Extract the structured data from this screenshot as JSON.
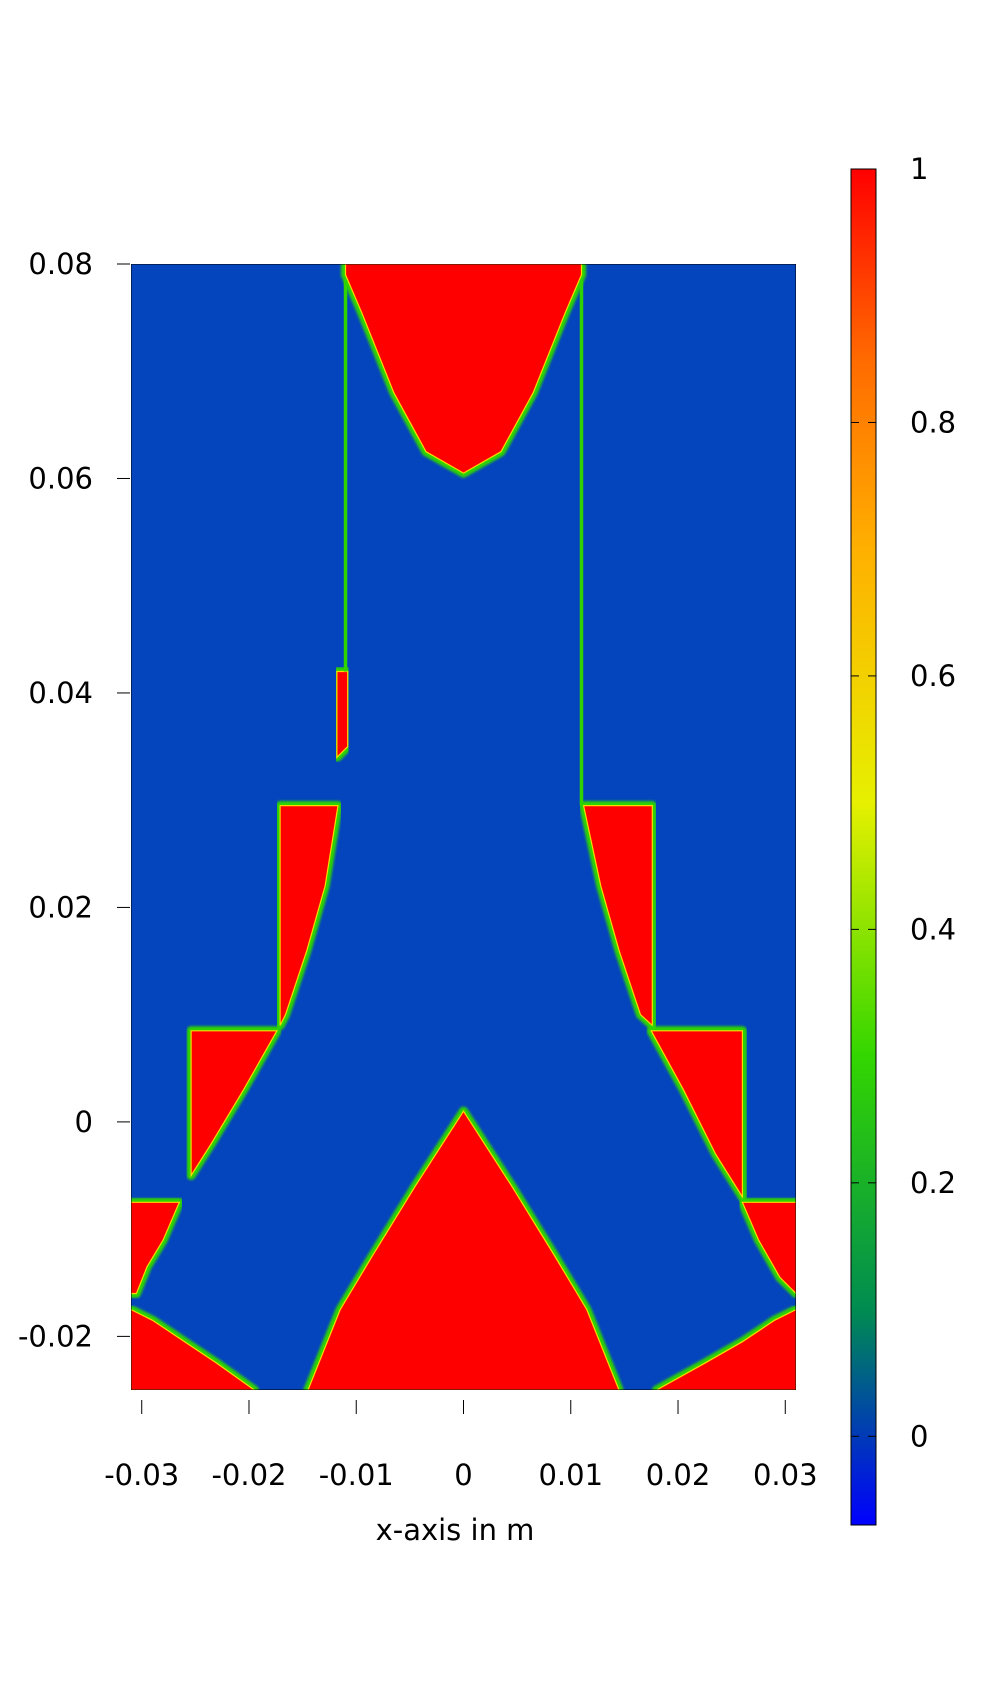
{
  "chart_data": {
    "type": "heatmap",
    "title": "",
    "xlabel": "x-axis in m",
    "ylabel": "",
    "xlim": [
      -0.031,
      0.031
    ],
    "ylim": [
      -0.025,
      0.08
    ],
    "x_ticks": [
      {
        "value": -0.03,
        "label": "-0.03"
      },
      {
        "value": -0.02,
        "label": "-0.02"
      },
      {
        "value": -0.01,
        "label": "-0.01"
      },
      {
        "value": 0,
        "label": "0"
      },
      {
        "value": 0.01,
        "label": "0.01"
      },
      {
        "value": 0.02,
        "label": "0.02"
      },
      {
        "value": 0.03,
        "label": "0.03"
      }
    ],
    "y_ticks": [
      {
        "value": -0.02,
        "label": "-0.02"
      },
      {
        "value": 0,
        "label": "0"
      },
      {
        "value": 0.02,
        "label": "0.02"
      },
      {
        "value": 0.04,
        "label": "0.04"
      },
      {
        "value": 0.06,
        "label": "0.06"
      },
      {
        "value": 0.08,
        "label": "0.08"
      }
    ],
    "colorbar": {
      "range": [
        -0.07,
        1.0
      ],
      "ticks": [
        {
          "value": 0,
          "label": "0"
        },
        {
          "value": 0.2,
          "label": "0.2"
        },
        {
          "value": 0.4,
          "label": "0.4"
        },
        {
          "value": 0.6,
          "label": "0.6"
        },
        {
          "value": 0.8,
          "label": "0.8"
        },
        {
          "value": 1,
          "label": "1"
        }
      ],
      "colors": [
        {
          "value": -0.07,
          "color": "#0000ff"
        },
        {
          "value": 0.1,
          "color": "#008c50"
        },
        {
          "value": 0.3,
          "color": "#33d600"
        },
        {
          "value": 0.5,
          "color": "#e6f000"
        },
        {
          "value": 0.7,
          "color": "#ffb000"
        },
        {
          "value": 0.85,
          "color": "#ff6a00"
        },
        {
          "value": 1.0,
          "color": "#ff0000"
        }
      ]
    },
    "field": {
      "background_value": 0,
      "background_color": "#0444bd",
      "filled_value": 1,
      "filled_color": "#ff0000",
      "interface_color": "#2fd400",
      "regions": [
        {
          "name": "top-inlet-cap",
          "points": [
            [
              -0.011,
              0.08
            ],
            [
              0.011,
              0.08
            ],
            [
              0.011,
              0.079
            ],
            [
              0.0095,
              0.0755
            ],
            [
              0.0065,
              0.068
            ],
            [
              0.0035,
              0.0625
            ],
            [
              0.0,
              0.0605
            ],
            [
              -0.0035,
              0.0625
            ],
            [
              -0.0065,
              0.068
            ],
            [
              -0.0095,
              0.0755
            ],
            [
              -0.011,
              0.079
            ]
          ]
        },
        {
          "name": "narrow-strip-left",
          "points": [
            [
              -0.0118,
              0.042
            ],
            [
              -0.0108,
              0.042
            ],
            [
              -0.0108,
              0.035
            ],
            [
              -0.0118,
              0.034
            ]
          ]
        },
        {
          "name": "step-left-upper",
          "points": [
            [
              -0.0171,
              0.0295
            ],
            [
              -0.0117,
              0.0295
            ],
            [
              -0.0129,
              0.022
            ],
            [
              -0.0146,
              0.016
            ],
            [
              -0.0166,
              0.01
            ],
            [
              -0.0171,
              0.009
            ]
          ]
        },
        {
          "name": "step-right-upper",
          "points": [
            [
              0.0112,
              0.0295
            ],
            [
              0.0176,
              0.0295
            ],
            [
              0.0176,
              0.009
            ],
            [
              0.0165,
              0.01
            ],
            [
              0.0145,
              0.016
            ],
            [
              0.0128,
              0.022
            ]
          ]
        },
        {
          "name": "step-left-middle",
          "points": [
            [
              -0.0254,
              0.0085
            ],
            [
              -0.0174,
              0.0085
            ],
            [
              -0.0205,
              0.003
            ],
            [
              -0.0235,
              -0.002
            ],
            [
              -0.0254,
              -0.005
            ]
          ]
        },
        {
          "name": "step-right-middle",
          "points": [
            [
              0.0175,
              0.0085
            ],
            [
              0.026,
              0.0085
            ],
            [
              0.026,
              -0.007
            ],
            [
              0.0235,
              -0.003
            ],
            [
              0.0205,
              0.003
            ]
          ]
        },
        {
          "name": "corner-left-lower",
          "points": [
            [
              -0.031,
              -0.0075
            ],
            [
              -0.0265,
              -0.0075
            ],
            [
              -0.028,
              -0.011
            ],
            [
              -0.0295,
              -0.0135
            ],
            [
              -0.0305,
              -0.016
            ],
            [
              -0.031,
              -0.016
            ]
          ]
        },
        {
          "name": "corner-right-lower",
          "points": [
            [
              0.026,
              -0.0075
            ],
            [
              0.031,
              -0.0075
            ],
            [
              0.031,
              -0.016
            ],
            [
              0.0295,
              -0.0145
            ],
            [
              0.0275,
              -0.011
            ]
          ]
        },
        {
          "name": "bottom-left-lobe",
          "points": [
            [
              -0.031,
              -0.0175
            ],
            [
              -0.029,
              -0.0185
            ],
            [
              -0.026,
              -0.0205
            ],
            [
              -0.023,
              -0.0225
            ],
            [
              -0.0195,
              -0.025
            ],
            [
              -0.031,
              -0.025
            ]
          ]
        },
        {
          "name": "bottom-right-lobe",
          "points": [
            [
              0.031,
              -0.0175
            ],
            [
              0.029,
              -0.0185
            ],
            [
              0.026,
              -0.0205
            ],
            [
              0.0225,
              -0.0225
            ],
            [
              0.018,
              -0.025
            ],
            [
              0.031,
              -0.025
            ]
          ]
        },
        {
          "name": "central-wedge",
          "points": [
            [
              0.0,
              0.001
            ],
            [
              0.0045,
              -0.006
            ],
            [
              0.0085,
              -0.0125
            ],
            [
              0.0115,
              -0.0175
            ],
            [
              0.0145,
              -0.025
            ],
            [
              -0.0145,
              -0.025
            ],
            [
              -0.0115,
              -0.0175
            ],
            [
              -0.0085,
              -0.0125
            ],
            [
              -0.0045,
              -0.006
            ]
          ]
        }
      ],
      "domain_outline": [
        [
          -0.031,
          0.08
        ],
        [
          0.031,
          0.08
        ],
        [
          0.031,
          -0.025
        ],
        [
          -0.031,
          -0.025
        ]
      ]
    }
  }
}
